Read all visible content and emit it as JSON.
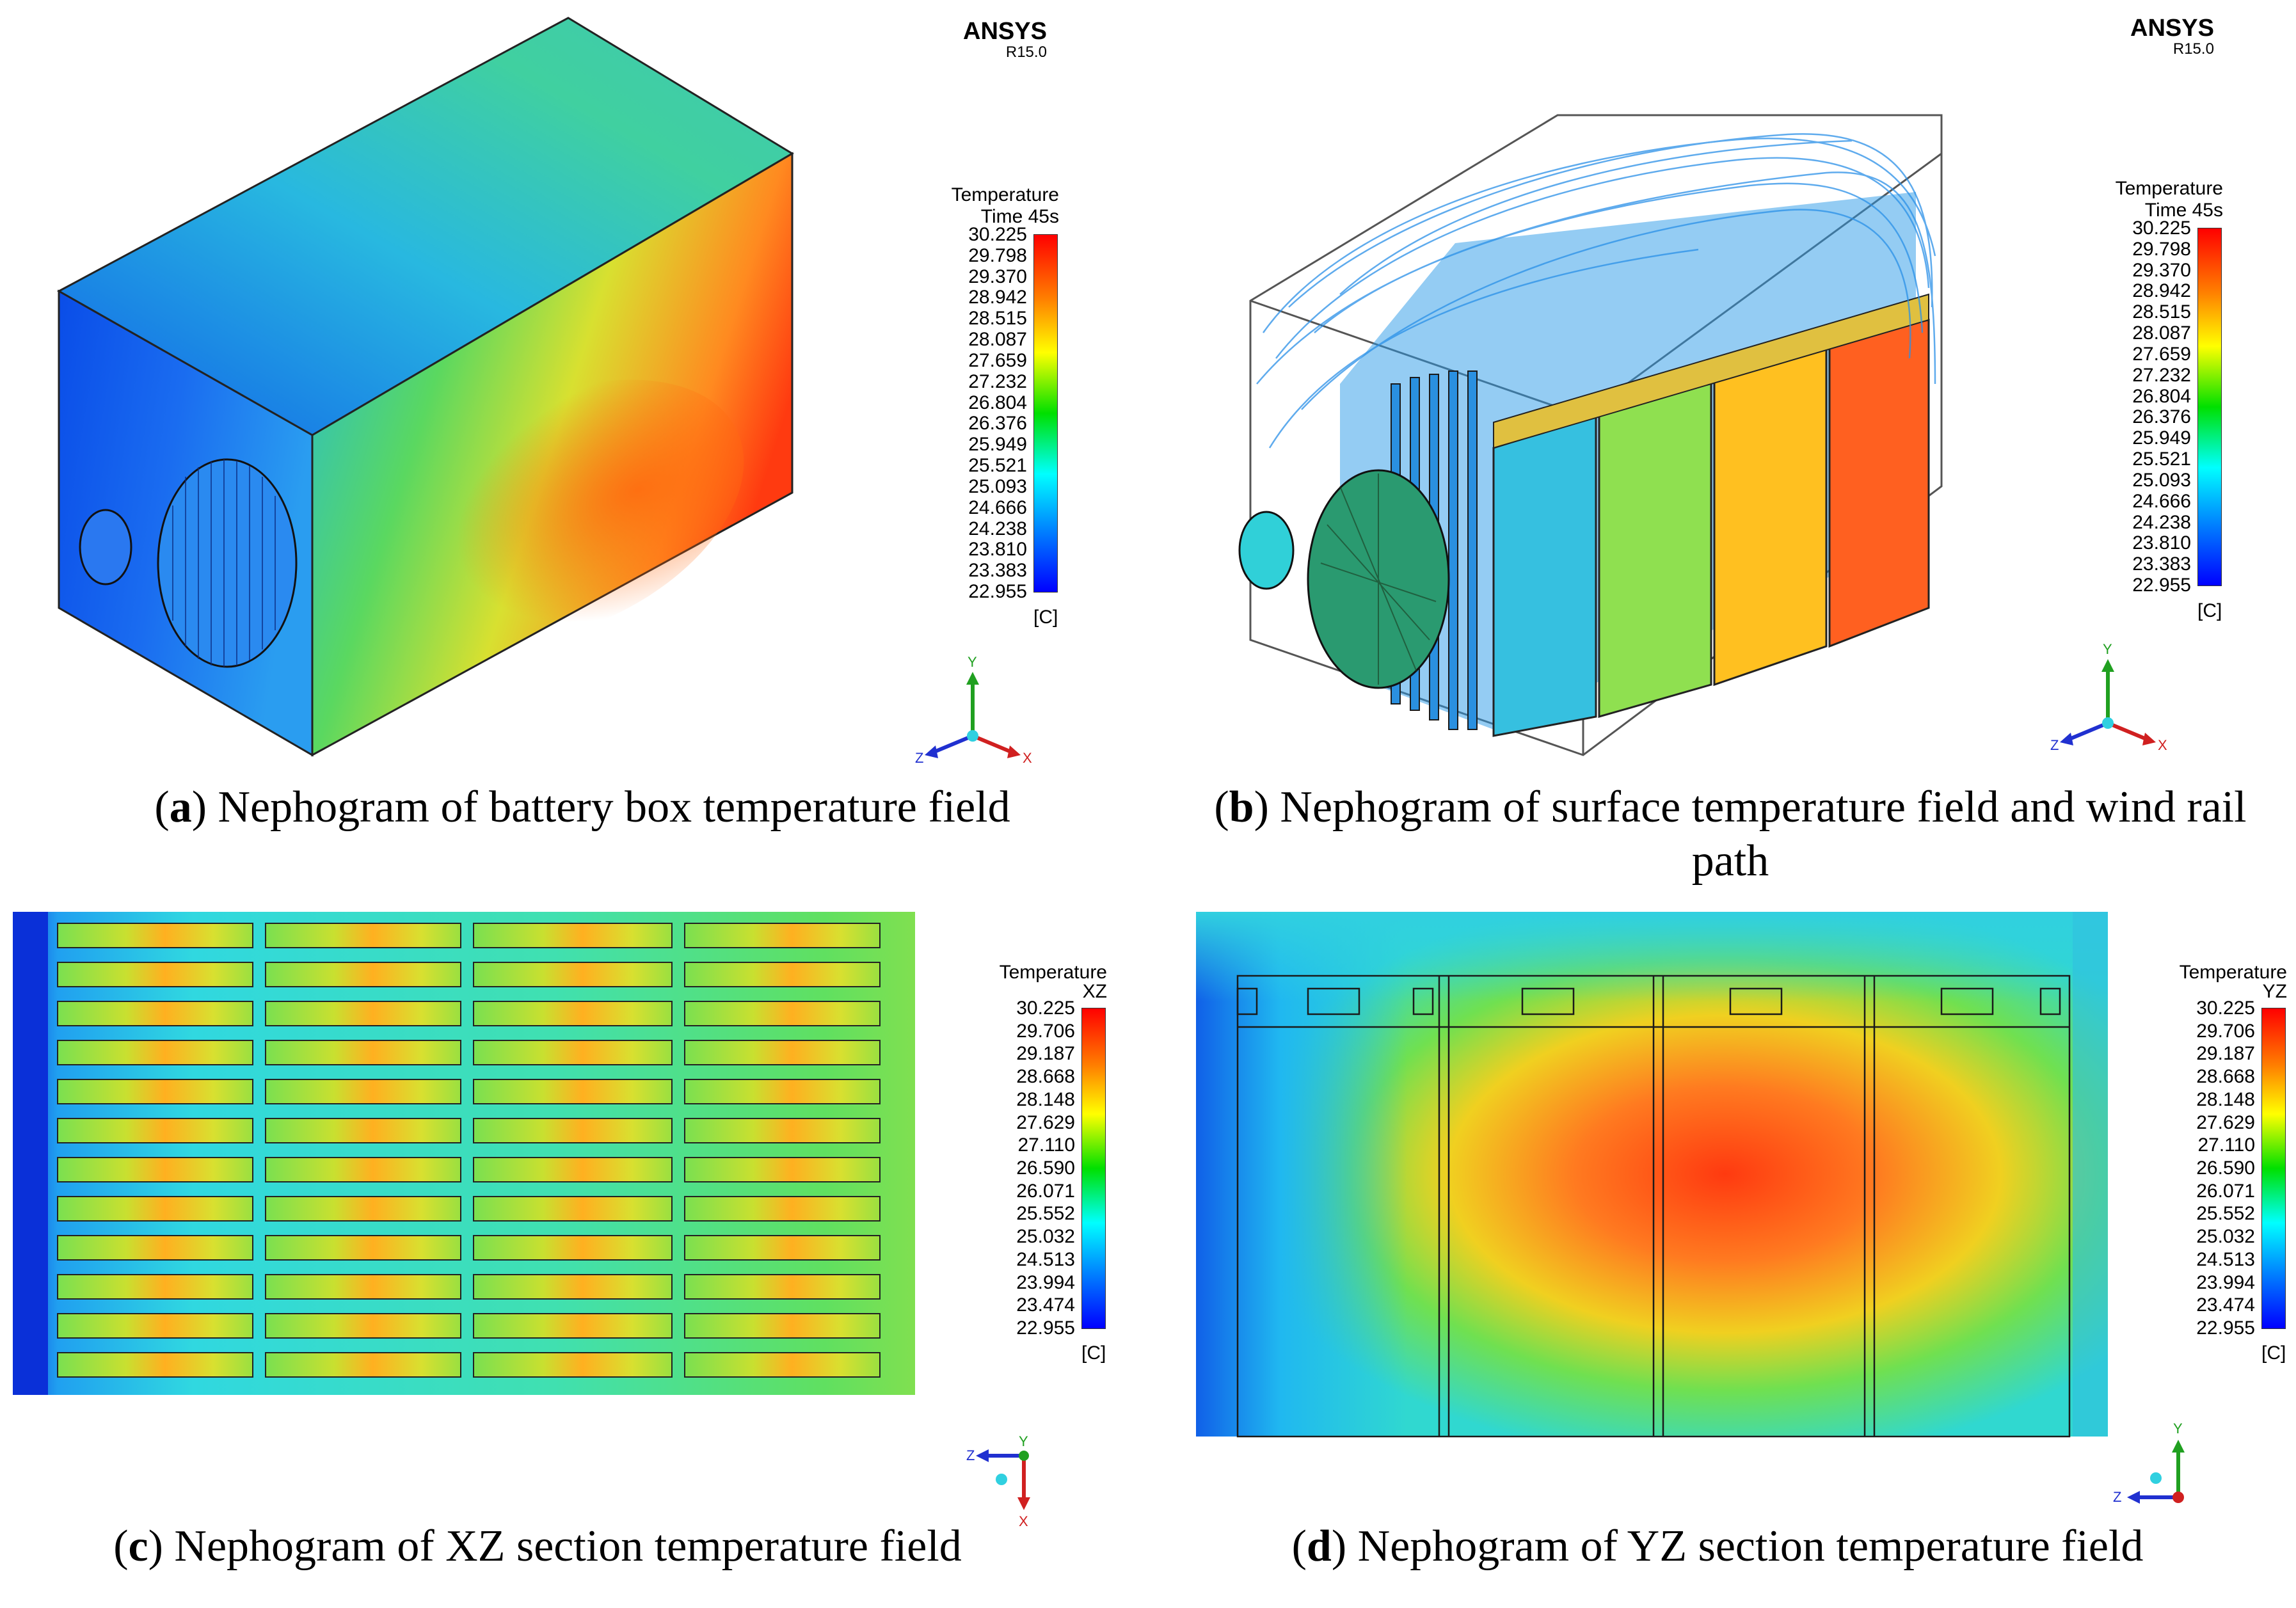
{
  "brand": {
    "name": "ANSYS",
    "version": "R15.0"
  },
  "legend": {
    "title": "Temperature",
    "unit": "[C]",
    "colors": [
      "#ff0000",
      "#ff8000",
      "#ffff00",
      "#00ff00",
      "#00ffff",
      "#0080ff",
      "#0000ff"
    ],
    "ticks_3d": [
      "30.225",
      "29.798",
      "29.370",
      "28.942",
      "28.515",
      "28.087",
      "27.659",
      "27.232",
      "26.804",
      "26.376",
      "25.949",
      "25.521",
      "25.093",
      "24.666",
      "24.238",
      "23.810",
      "23.383",
      "22.955"
    ],
    "ticks_section": [
      "30.225",
      "29.706",
      "29.187",
      "28.668",
      "28.148",
      "27.629",
      "27.110",
      "26.590",
      "26.071",
      "25.552",
      "25.032",
      "24.513",
      "23.994",
      "23.474",
      "22.955"
    ]
  },
  "panels": {
    "a": {
      "letter": "a",
      "caption": " Nephogram of battery box temperature field",
      "subtitle": "Time 45s"
    },
    "b": {
      "letter": "b",
      "caption": " Nephogram of surface temperature field and wind rail path",
      "subtitle": "Time 45s"
    },
    "c": {
      "letter": "c",
      "caption": " Nephogram of XZ section temperature field",
      "subtitle": "XZ"
    },
    "d": {
      "letter": "d",
      "caption": " Nephogram of YZ section temperature field",
      "subtitle": "YZ"
    }
  },
  "axes": {
    "x": "X",
    "y": "Y",
    "z": "Z"
  }
}
